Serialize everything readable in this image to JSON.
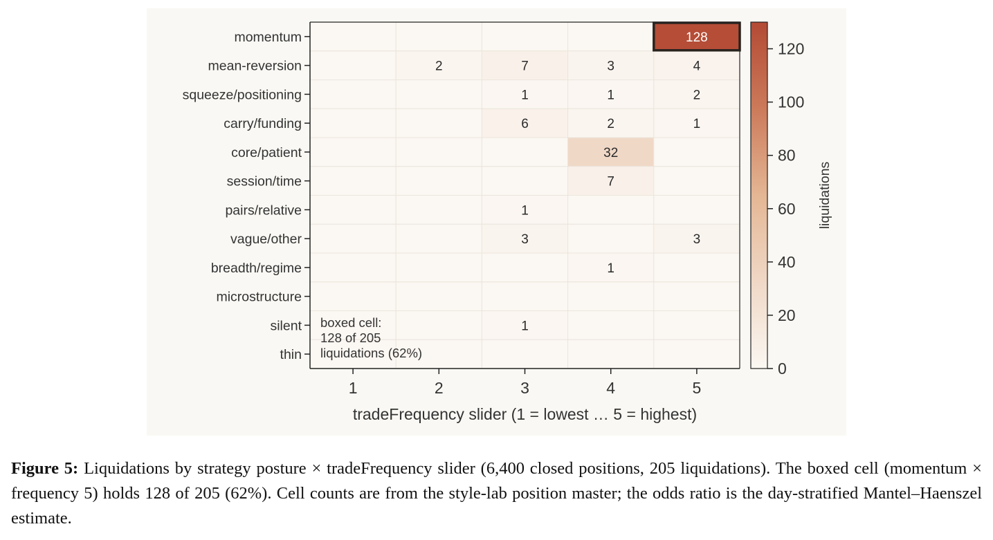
{
  "chart_data": {
    "type": "heatmap",
    "title": "",
    "xlabel": "tradeFrequency slider (1 = lowest … 5 = highest)",
    "ylabel": "",
    "x_categories": [
      "1",
      "2",
      "3",
      "4",
      "5"
    ],
    "y_categories": [
      "momentum",
      "mean-reversion",
      "squeeze/positioning",
      "carry/funding",
      "core/patient",
      "session/time",
      "pairs/relative",
      "vague/other",
      "breadth/regime",
      "microstructure",
      "silent",
      "thin"
    ],
    "values": [
      [
        0,
        0,
        0,
        0,
        128
      ],
      [
        0,
        2,
        7,
        3,
        4
      ],
      [
        0,
        0,
        1,
        1,
        2
      ],
      [
        0,
        0,
        6,
        2,
        1
      ],
      [
        0,
        0,
        0,
        32,
        0
      ],
      [
        0,
        0,
        0,
        7,
        0
      ],
      [
        0,
        0,
        1,
        0,
        0
      ],
      [
        0,
        0,
        3,
        0,
        3
      ],
      [
        0,
        0,
        0,
        1,
        0
      ],
      [
        0,
        0,
        0,
        0,
        0
      ],
      [
        0,
        0,
        1,
        0,
        0
      ],
      [
        0,
        0,
        0,
        0,
        0
      ]
    ],
    "colorbar": {
      "label": "liquidations",
      "range": [
        0,
        130
      ],
      "ticks": [
        0,
        20,
        40,
        60,
        80,
        100,
        120
      ],
      "colors": [
        "#fbf7f2",
        "#f0d8c6",
        "#e4b694",
        "#cc7a5a",
        "#b34a35"
      ]
    },
    "highlight_cell": {
      "row": "momentum",
      "col": "5"
    },
    "annotation": [
      "boxed cell:",
      "128 of 205",
      "liquidations (62%)"
    ],
    "grid": true
  },
  "caption": {
    "label": "Figure 5:",
    "text": "Liquidations by strategy posture × tradeFrequency slider (6,400 closed positions, 205 liquidations). The boxed cell (momentum × frequency 5) holds 128 of 205 (62%). Cell counts are from the style-lab position master; the odds ratio is the day-stratified Mantel–Haenszel estimate."
  }
}
